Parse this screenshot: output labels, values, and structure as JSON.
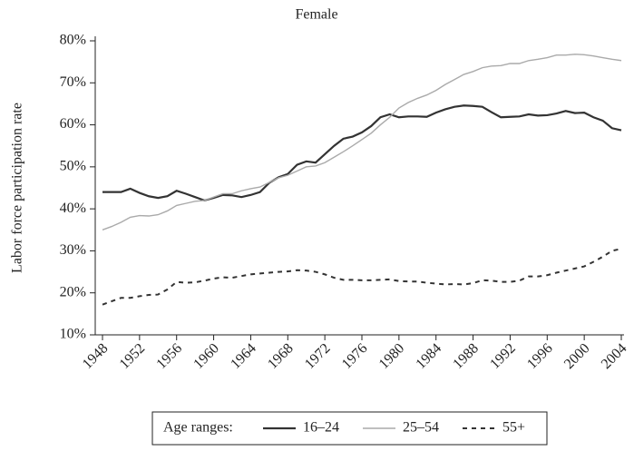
{
  "chart_data": {
    "type": "line",
    "title": "Female",
    "y_label": "Labor force participation rate",
    "legend_title": "Age ranges:",
    "x": [
      1948,
      1949,
      1950,
      1951,
      1952,
      1953,
      1954,
      1955,
      1956,
      1957,
      1958,
      1959,
      1960,
      1961,
      1962,
      1963,
      1964,
      1965,
      1966,
      1967,
      1968,
      1969,
      1970,
      1971,
      1972,
      1973,
      1974,
      1975,
      1976,
      1977,
      1978,
      1979,
      1980,
      1981,
      1982,
      1983,
      1984,
      1985,
      1986,
      1987,
      1988,
      1989,
      1990,
      1991,
      1992,
      1993,
      1994,
      1995,
      1996,
      1997,
      1998,
      1999,
      2000,
      2001,
      2002,
      2003,
      2004
    ],
    "series": [
      {
        "name": "16–24",
        "color": "#333333",
        "style": "solid",
        "width": 2.2,
        "values": [
          44,
          44,
          44,
          44.8,
          43.8,
          43,
          42.6,
          43,
          44.3,
          43.6,
          42.8,
          42,
          42.6,
          43.3,
          43.2,
          42.8,
          43.3,
          44,
          46.2,
          47.5,
          48.3,
          50.5,
          51.3,
          51,
          53,
          55,
          56.7,
          57.2,
          58.2,
          59.7,
          61.8,
          62.5,
          61.8,
          62,
          62,
          61.9,
          62.9,
          63.7,
          64.3,
          64.6,
          64.5,
          64.3,
          63,
          61.8,
          61.9,
          62,
          62.5,
          62.2,
          62.3,
          62.7,
          63.3,
          62.8,
          62.9,
          61.8,
          61,
          59.2,
          58.7
        ]
      },
      {
        "name": "25–54",
        "color": "#aaaaaa",
        "style": "solid",
        "width": 1.4,
        "values": [
          35,
          35.8,
          36.8,
          38,
          38.4,
          38.3,
          38.6,
          39.5,
          40.8,
          41.3,
          41.8,
          42,
          42.8,
          43.6,
          43.6,
          44.3,
          44.8,
          45.2,
          46.3,
          47.4,
          48,
          49,
          50,
          50.2,
          51,
          52.3,
          53.6,
          55,
          56.5,
          58,
          60,
          61.8,
          64,
          65.3,
          66.3,
          67.1,
          68.2,
          69.6,
          70.8,
          72,
          72.7,
          73.6,
          74,
          74.1,
          74.6,
          74.6,
          75.3,
          75.6,
          76,
          76.6,
          76.6,
          76.8,
          76.7,
          76.4,
          76,
          75.6,
          75.3
        ]
      },
      {
        "name": "55+",
        "color": "#333333",
        "style": "dashed",
        "width": 2,
        "values": [
          17.2,
          18,
          18.8,
          18.8,
          19.2,
          19.5,
          19.6,
          20.8,
          22.6,
          22.4,
          22.5,
          22.9,
          23.4,
          23.7,
          23.6,
          24,
          24.4,
          24.6,
          24.8,
          25,
          25.1,
          25.4,
          25.3,
          25,
          24.4,
          23.6,
          23.1,
          23.1,
          23,
          23,
          23.1,
          23.2,
          22.8,
          22.7,
          22.7,
          22.4,
          22.2,
          22,
          22.1,
          22,
          22.3,
          23,
          22.9,
          22.6,
          22.6,
          22.9,
          23.9,
          23.9,
          24.2,
          24.8,
          25.3,
          25.8,
          26.3,
          27.4,
          28.6,
          30,
          30.5
        ]
      }
    ],
    "xlim": [
      1948,
      2004
    ],
    "xticks": [
      1948,
      1952,
      1956,
      1960,
      1964,
      1968,
      1972,
      1976,
      1980,
      1984,
      1988,
      1992,
      1996,
      2000,
      2004
    ],
    "ylim": [
      10,
      80
    ],
    "yticks": [
      {
        "value": 10,
        "label": "10%"
      },
      {
        "value": 20,
        "label": "20%"
      },
      {
        "value": 30,
        "label": "30%"
      },
      {
        "value": 40,
        "label": "40%"
      },
      {
        "value": 50,
        "label": "50%"
      },
      {
        "value": 60,
        "label": "60%"
      },
      {
        "value": 70,
        "label": "70%"
      },
      {
        "value": 80,
        "label": "80%"
      }
    ],
    "grid": false,
    "legend": "bottom"
  }
}
